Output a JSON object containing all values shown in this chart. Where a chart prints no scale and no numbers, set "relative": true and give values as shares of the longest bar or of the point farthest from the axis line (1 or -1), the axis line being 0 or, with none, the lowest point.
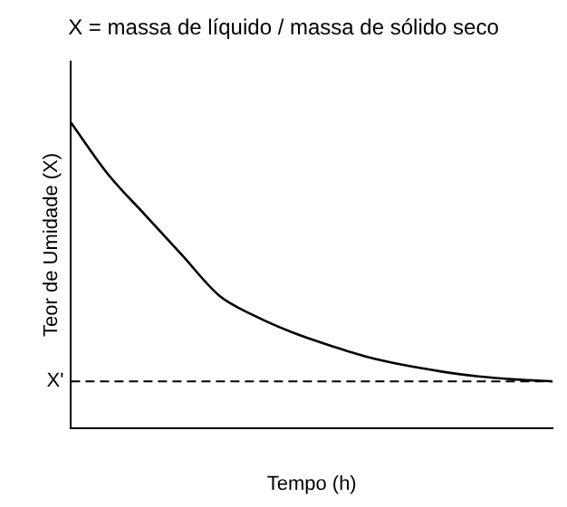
{
  "chart_data": {
    "type": "line",
    "title": "X = massa de líquido / massa de sólido seco",
    "xlabel": "Tempo (h)",
    "ylabel": "Teor de Umidade (X)",
    "relative": true,
    "grid": false,
    "legend": false,
    "marker": "none",
    "line_style": "solid",
    "categories": [
      null,
      null,
      null,
      null,
      null,
      null,
      null,
      null,
      null,
      null,
      null,
      null,
      null,
      null
    ],
    "series": [
      {
        "color": "#000000",
        "values": [
          1,
          0.831,
          0.698,
          0.566,
          0.434,
          0.365,
          0.312,
          0.27,
          0.233,
          0.206,
          0.185,
          0.169,
          0.159,
          0.153
        ]
      }
    ],
    "ref_lines": [
      {
        "axis": "y",
        "value": 0.153,
        "label": "X'",
        "color": "#000000",
        "line_style": "dashed"
      }
    ]
  }
}
